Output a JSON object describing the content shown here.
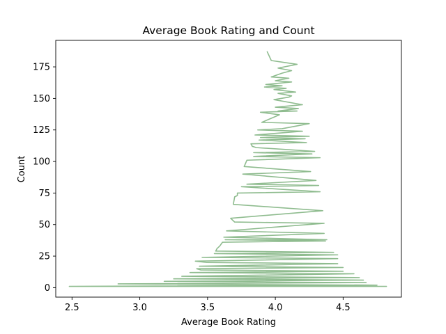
{
  "chart_data": {
    "type": "line",
    "title": "Average Book Rating and Count",
    "xlabel": "Average Book Rating",
    "ylabel": "Count",
    "xlim": [
      2.38,
      4.93
    ],
    "ylim": [
      -7.5,
      196
    ],
    "xticks": [
      2.5,
      3.0,
      3.5,
      4.0,
      4.5
    ],
    "xtick_labels": [
      "2.5",
      "3.0",
      "3.5",
      "4.0",
      "4.5"
    ],
    "yticks": [
      0,
      25,
      50,
      75,
      100,
      125,
      150,
      175
    ],
    "ytick_labels": [
      "0",
      "25",
      "50",
      "75",
      "100",
      "125",
      "150",
      "175"
    ],
    "grid": false,
    "legend": "none",
    "line_color": "#8fbc8f",
    "series": [
      {
        "points": [
          [
            3.94,
            187
          ],
          [
            3.97,
            180
          ],
          [
            4.16,
            177
          ],
          [
            4.02,
            174
          ],
          [
            4.12,
            172
          ],
          [
            4.05,
            170
          ],
          [
            3.97,
            167
          ],
          [
            4.1,
            166
          ],
          [
            4.0,
            164
          ],
          [
            4.12,
            163
          ],
          [
            3.93,
            161
          ],
          [
            4.05,
            160
          ],
          [
            3.92,
            159
          ],
          [
            4.08,
            158
          ],
          [
            3.99,
            157
          ],
          [
            4.15,
            155
          ],
          [
            4.02,
            154
          ],
          [
            4.12,
            152
          ],
          [
            4.1,
            151
          ],
          [
            3.99,
            149
          ],
          [
            4.2,
            145
          ],
          [
            4.0,
            143
          ],
          [
            4.17,
            142
          ],
          [
            4.02,
            140
          ],
          [
            4.16,
            140
          ],
          [
            3.89,
            139
          ],
          [
            4.03,
            137
          ],
          [
            3.9,
            131
          ],
          [
            4.25,
            130
          ],
          [
            4.05,
            126
          ],
          [
            3.87,
            125
          ],
          [
            4.2,
            124
          ],
          [
            3.85,
            121
          ],
          [
            4.25,
            120
          ],
          [
            3.89,
            119
          ],
          [
            4.22,
            118
          ],
          [
            3.88,
            117
          ],
          [
            4.23,
            115
          ],
          [
            3.82,
            114
          ],
          [
            3.83,
            112
          ],
          [
            3.86,
            111
          ],
          [
            4.29,
            108
          ],
          [
            3.84,
            107
          ],
          [
            4.27,
            106
          ],
          [
            3.84,
            104
          ],
          [
            4.33,
            103
          ],
          [
            3.79,
            101
          ],
          [
            3.77,
            96
          ],
          [
            4.26,
            92
          ],
          [
            3.76,
            90
          ],
          [
            4.3,
            85
          ],
          [
            3.79,
            82
          ],
          [
            4.32,
            81
          ],
          [
            3.75,
            80
          ],
          [
            4.33,
            76
          ],
          [
            3.72,
            75
          ],
          [
            3.72,
            73
          ],
          [
            3.7,
            72
          ],
          [
            3.69,
            66
          ],
          [
            4.35,
            61
          ],
          [
            3.67,
            55
          ],
          [
            3.7,
            52
          ],
          [
            4.36,
            51
          ],
          [
            3.64,
            45
          ],
          [
            4.36,
            43
          ],
          [
            3.62,
            40
          ],
          [
            4.38,
            38
          ],
          [
            3.63,
            38
          ],
          [
            4.37,
            37
          ],
          [
            3.61,
            36
          ],
          [
            3.59,
            33
          ],
          [
            3.57,
            31
          ],
          [
            3.56,
            29
          ],
          [
            4.43,
            28
          ],
          [
            3.55,
            27
          ],
          [
            4.46,
            26
          ],
          [
            3.46,
            24
          ],
          [
            4.46,
            23
          ],
          [
            3.41,
            21
          ],
          [
            3.49,
            20
          ],
          [
            4.46,
            19
          ],
          [
            3.44,
            17
          ],
          [
            4.5,
            16
          ],
          [
            3.42,
            15
          ],
          [
            3.45,
            14
          ],
          [
            4.5,
            13
          ],
          [
            3.37,
            12
          ],
          [
            4.58,
            11
          ],
          [
            3.31,
            9
          ],
          [
            4.62,
            8
          ],
          [
            3.25,
            7
          ],
          [
            4.65,
            6
          ],
          [
            3.18,
            5
          ],
          [
            4.67,
            4
          ],
          [
            2.84,
            3
          ],
          [
            4.75,
            2
          ],
          [
            2.48,
            1
          ],
          [
            4.82,
            1
          ]
        ]
      }
    ]
  }
}
